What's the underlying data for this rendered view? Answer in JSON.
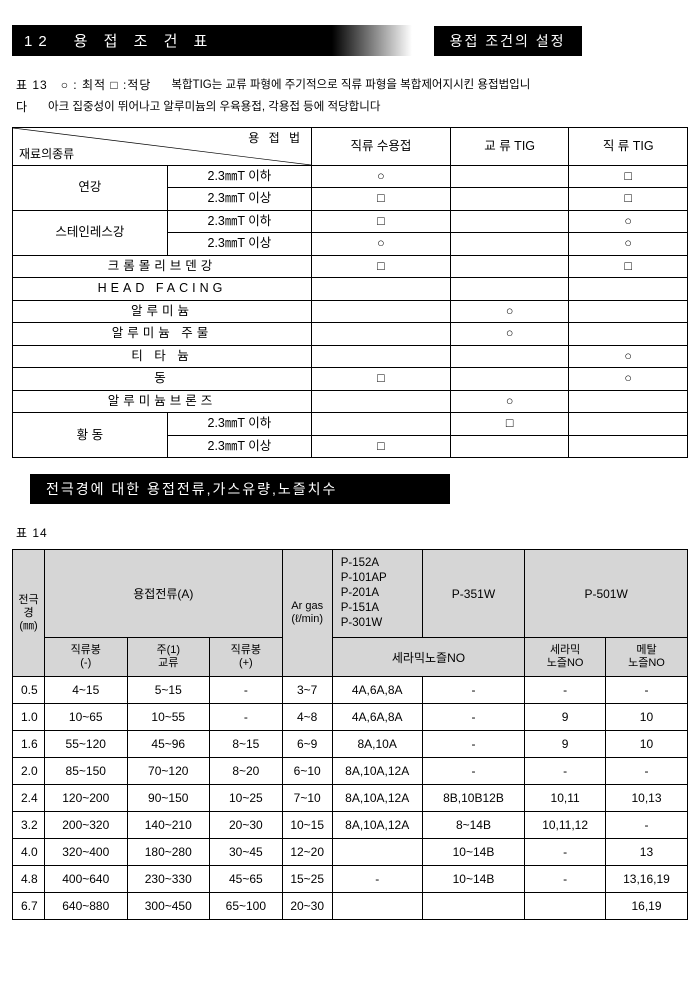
{
  "header_main": "12　용 접 조 건 표",
  "sub_header1": "용접 조건의 설정",
  "note_left": "표 13　○ : 최적 □ :적당",
  "note_trailing": "다",
  "note_right_l1": "복합TIG는 교류 파형에 주기적으로 직류 파형을 복합제어지시킨 용접법입니",
  "note_right_l2": "아크 집중성이 뛰어나고 알루미늄의 우육용접, 각용접 등에 적당합니다",
  "t1": {
    "diag_top": "용 접 법",
    "diag_bot": "재료의종류",
    "cols": [
      "직류 수용접",
      "교  류 TIG",
      "직  류 TIG"
    ],
    "rows": [
      {
        "span": 2,
        "label": "연강",
        "sub": "2.3㎜T 이하",
        "v": [
          "○",
          "",
          "□"
        ]
      },
      {
        "span": 0,
        "label": "",
        "sub": "2.3㎜T 이상",
        "v": [
          "□",
          "",
          "□"
        ]
      },
      {
        "span": 2,
        "label": "스테인레스강",
        "sub": "2.3㎜T 이하",
        "v": [
          "□",
          "",
          "○"
        ]
      },
      {
        "span": 0,
        "label": "",
        "sub": "2.3㎜T 이상",
        "v": [
          "○",
          "",
          "○"
        ]
      },
      {
        "span": -1,
        "label": "크롬몰리브덴강",
        "v": [
          "□",
          "",
          "□"
        ]
      },
      {
        "span": -1,
        "label": "HEAD FACING",
        "v": [
          "",
          "",
          ""
        ]
      },
      {
        "span": -1,
        "label": "알루미늄",
        "v": [
          "",
          "○",
          ""
        ]
      },
      {
        "span": -1,
        "label": "알루미늄 주물",
        "v": [
          "",
          "○",
          ""
        ]
      },
      {
        "span": -1,
        "label": "티 타 늄",
        "v": [
          "",
          "",
          "○"
        ]
      },
      {
        "span": -1,
        "label": "동",
        "v": [
          "□",
          "",
          "○"
        ]
      },
      {
        "span": -1,
        "label": "알루미늄브론즈",
        "v": [
          "",
          "○",
          ""
        ]
      },
      {
        "span": 2,
        "label": "황  동",
        "sub": "2.3㎜T 이하",
        "v": [
          "",
          "□",
          ""
        ]
      },
      {
        "span": 0,
        "label": "",
        "sub": "2.3㎜T 이상",
        "v": [
          "□",
          "",
          ""
        ]
      }
    ]
  },
  "sub_header2": "전극경에 대한 용접전류,가스유량,노즐치수",
  "caption2": "표 14",
  "t2": {
    "h_elec": "전극경",
    "h_elec_unit": "(㎜)",
    "h_current": "용접전류(A)",
    "h_argas": "Ar gas",
    "h_argas_unit": "(ℓ/min)",
    "h_models": "P-152A\nP-101AP\nP-201A\nP-151A\nP-301W",
    "h_p351": "P-351W",
    "h_p501": "P-501W",
    "sub_dc_neg": "직류봉\n(-)",
    "sub_ac": "주(1)\n교류",
    "sub_dc_pos": "직류봉\n(+)",
    "sub_ceramic": "세라믹노즐NO",
    "sub_ceramic2": "세라믹\n노즐NO",
    "sub_metal": "메탈\n노즐NO",
    "rows": [
      [
        "0.5",
        "4~15",
        "5~15",
        "-",
        "3~7",
        "4A,6A,8A",
        "-",
        "-",
        "-"
      ],
      [
        "1.0",
        "10~65",
        "10~55",
        "-",
        "4~8",
        "4A,6A,8A",
        "-",
        "9",
        "10"
      ],
      [
        "1.6",
        "55~120",
        "45~96",
        "8~15",
        "6~9",
        "8A,10A",
        "-",
        "9",
        "10"
      ],
      [
        "2.0",
        "85~150",
        "70~120",
        "8~20",
        "6~10",
        "8A,10A,12A",
        "-",
        "-",
        "-"
      ],
      [
        "2.4",
        "120~200",
        "90~150",
        "10~25",
        "7~10",
        "8A,10A,12A",
        "8B,10B12B",
        "10,11",
        "10,13"
      ],
      [
        "3.2",
        "200~320",
        "140~210",
        "20~30",
        "10~15",
        "8A,10A,12A",
        "8~14B",
        "10,11,12",
        "-"
      ],
      [
        "4.0",
        "320~400",
        "180~280",
        "30~45",
        "12~20",
        "",
        "10~14B",
        "-",
        "13"
      ],
      [
        "4.8",
        "400~640",
        "230~330",
        "45~65",
        "15~25",
        "-",
        "10~14B",
        "-",
        "13,16,19"
      ],
      [
        "6.7",
        "640~880",
        "300~450",
        "65~100",
        "20~30",
        "",
        "",
        "",
        "16,19"
      ]
    ]
  }
}
